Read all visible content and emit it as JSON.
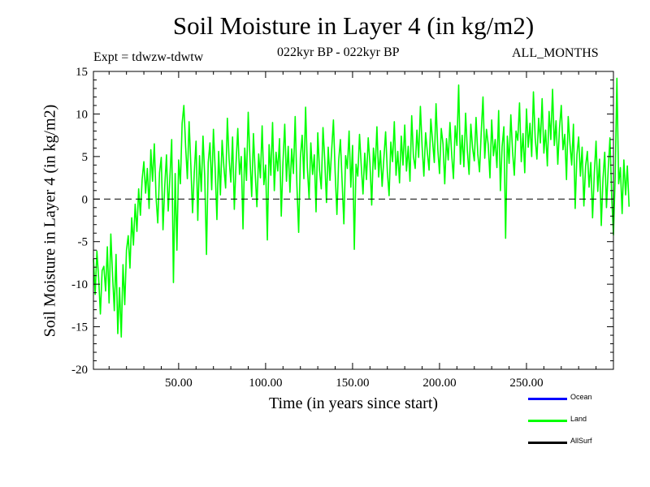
{
  "header": {
    "title": "Soil Moisture in Layer 4 (in kg/m2)",
    "experiment": "Expt = tdwzw-tdwtw",
    "period": "022kyr BP - 022kyr BP",
    "months": "ALL_MONTHS"
  },
  "legend": [
    {
      "label": "Ocean",
      "color": "#0000ff"
    },
    {
      "label": "Land",
      "color": "#00ff00"
    },
    {
      "label": "AllSurf",
      "color": "#000000"
    }
  ],
  "chart_data": {
    "type": "line",
    "title": "Soil Moisture in Layer 4 (in kg/m2)",
    "xlabel": "Time (in years since start)",
    "ylabel": "Soil Moisture in Layer 4 (in kg/m2)",
    "xlim": [
      1,
      300
    ],
    "ylim": [
      -20,
      15
    ],
    "x_ticks": [
      50,
      100,
      150,
      200,
      250
    ],
    "x_tick_labels": [
      "50.00",
      "100.00",
      "150.00",
      "200.00",
      "250.00"
    ],
    "y_ticks": [
      -20,
      -15,
      -10,
      -5,
      0,
      5,
      10,
      15
    ],
    "y_tick_labels": [
      "-20",
      "-15",
      "-10",
      "-5",
      "0",
      "5",
      "10",
      "15"
    ],
    "reference_line": 0,
    "series": [
      {
        "name": "Land",
        "color": "#00ff00",
        "x_start": 1,
        "x_step": 1,
        "values": [
          -7.0,
          -11.2,
          -6.1,
          -9.3,
          -13.5,
          -8.4,
          -7.9,
          -10.8,
          -5.6,
          -12.2,
          -4.1,
          -9.0,
          -13.1,
          -6.5,
          -15.8,
          -10.4,
          -16.2,
          -7.7,
          -12.4,
          -6.0,
          -4.3,
          -8.1,
          -2.2,
          -5.4,
          -0.6,
          -3.8,
          1.2,
          -1.9,
          2.3,
          4.4,
          0.7,
          3.6,
          -1.1,
          5.8,
          2.1,
          6.5,
          0.2,
          -2.8,
          3.1,
          4.9,
          -3.6,
          1.5,
          5.2,
          -1.4,
          2.7,
          7.0,
          -9.8,
          3.0,
          -6.0,
          4.6,
          1.8,
          8.9,
          11.0,
          6.2,
          2.4,
          9.1,
          4.0,
          -1.6,
          3.2,
          6.8,
          -2.5,
          5.1,
          0.9,
          7.4,
          2.6,
          -6.5,
          4.3,
          6.6,
          1.1,
          8.2,
          3.5,
          -2.4,
          5.6,
          0.5,
          6.9,
          3.8,
          1.3,
          9.5,
          4.7,
          2.0,
          7.3,
          -1.2,
          4.2,
          8.3,
          2.9,
          5.0,
          -3.5,
          6.0,
          2.2,
          10.2,
          4.8,
          0.3,
          7.7,
          3.1,
          -0.9,
          5.3,
          2.5,
          8.6,
          1.7,
          4.0,
          -4.8,
          6.4,
          2.8,
          9.0,
          1.0,
          5.5,
          3.3,
          7.1,
          -2.0,
          4.4,
          8.8,
          2.1,
          6.2,
          0.8,
          5.9,
          3.0,
          9.7,
          1.6,
          -3.9,
          4.9,
          7.5,
          2.4,
          10.8,
          3.7,
          0.1,
          6.6,
          2.9,
          5.2,
          -1.5,
          7.8,
          3.4,
          1.2,
          8.4,
          4.6,
          -0.4,
          6.1,
          2.2,
          5.8,
          9.3,
          3.1,
          -1.8,
          4.5,
          7.0,
          2.0,
          -2.9,
          5.1,
          3.6,
          8.0,
          1.4,
          6.3,
          -5.9,
          4.1,
          2.7,
          7.6,
          3.9,
          0.6,
          5.4,
          2.3,
          7.2,
          4.2,
          -0.7,
          6.0,
          3.5,
          8.5,
          2.6,
          5.7,
          1.5,
          4.8,
          7.9,
          3.2,
          0.4,
          6.7,
          4.4,
          9.1,
          2.8,
          5.6,
          1.9,
          7.4,
          4.0,
          8.7,
          3.3,
          6.2,
          2.1,
          9.8,
          5.0,
          3.6,
          8.1,
          4.9,
          10.9,
          6.1,
          2.7,
          7.8,
          5.5,
          3.4,
          9.4,
          6.8,
          4.3,
          11.2,
          5.9,
          3.0,
          8.3,
          6.5,
          1.8,
          7.1,
          4.6,
          9.0,
          5.2,
          2.4,
          8.6,
          6.3,
          13.4,
          4.1,
          7.5,
          3.8,
          10.1,
          5.7,
          2.9,
          8.8,
          6.0,
          4.5,
          9.6,
          5.3,
          3.2,
          7.9,
          12.0,
          4.8,
          8.2,
          6.4,
          2.5,
          9.3,
          5.1,
          7.0,
          3.7,
          10.4,
          1.0,
          6.2,
          8.5,
          -4.6,
          7.4,
          4.2,
          9.9,
          5.6,
          2.8,
          8.0,
          6.9,
          11.3,
          4.4,
          7.7,
          3.1,
          10.6,
          6.1,
          8.9,
          5.0,
          12.6,
          7.2,
          4.7,
          9.5,
          6.6,
          11.8,
          5.4,
          8.1,
          3.9,
          10.3,
          7.0,
          12.9,
          6.3,
          9.2,
          4.1,
          8.4,
          11.0,
          5.8,
          7.6,
          2.3,
          9.7,
          6.5,
          4.0,
          8.8,
          -1.1,
          5.2,
          7.3,
          2.7,
          6.1,
          -0.8,
          3.9,
          5.6,
          1.4,
          4.3,
          -2.2,
          3.0,
          6.8,
          0.9,
          4.7,
          -3.1,
          2.4,
          5.5,
          -1.0,
          3.5,
          7.2,
          0.3,
          -4.2,
          2.6,
          14.2,
          1.8,
          3.7,
          -1.7,
          4.6,
          0.5,
          3.9,
          -0.9
        ]
      }
    ]
  }
}
